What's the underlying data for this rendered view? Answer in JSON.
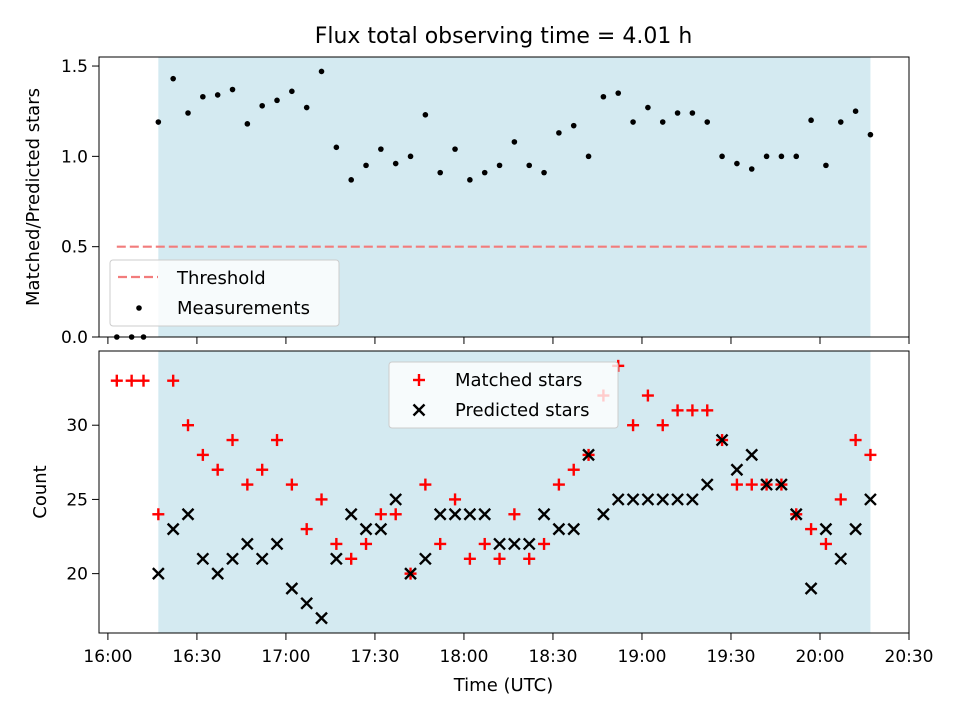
{
  "title": "Flux total observing time = 4.01 h",
  "colors": {
    "shade": "#d4eaf1",
    "threshold": "#f27c7c",
    "matched": "#ff0000",
    "predicted": "#000000",
    "measure": "#000000"
  },
  "chart_data": [
    {
      "type": "scatter",
      "name": "ratio-panel",
      "ylabel": "Matched/Predicted stars",
      "ylim": [
        0,
        1.55
      ],
      "yticks": [
        0,
        0.5,
        1.0,
        1.5
      ],
      "ytick_labels": [
        "0.0",
        "0.5",
        "1.0",
        "1.5"
      ],
      "shaded_range": [
        "16:17",
        "20:17"
      ],
      "threshold": {
        "label": "Threshold",
        "y": 0.5,
        "x_from": "16:03",
        "x_to": "20:17"
      },
      "measurements_label": "Measurements",
      "x": [
        "16:03",
        "16:08",
        "16:12",
        "16:17",
        "16:22",
        "16:27",
        "16:32",
        "16:37",
        "16:42",
        "16:47",
        "16:52",
        "16:57",
        "17:02",
        "17:07",
        "17:12",
        "17:17",
        "17:22",
        "17:27",
        "17:32",
        "17:37",
        "17:42",
        "17:47",
        "17:52",
        "17:57",
        "18:02",
        "18:07",
        "18:12",
        "18:17",
        "18:22",
        "18:27",
        "18:32",
        "18:37",
        "18:42",
        "18:47",
        "18:52",
        "18:57",
        "19:02",
        "19:07",
        "19:12",
        "19:17",
        "19:22",
        "19:27",
        "19:32",
        "19:37",
        "19:42",
        "19:47",
        "19:52",
        "19:57",
        "20:02",
        "20:07",
        "20:12",
        "20:17"
      ],
      "y": [
        0,
        0,
        0,
        1.19,
        1.43,
        1.24,
        1.33,
        1.34,
        1.37,
        1.18,
        1.28,
        1.31,
        1.36,
        1.27,
        1.47,
        1.05,
        0.87,
        0.95,
        1.04,
        0.96,
        1.0,
        1.23,
        0.91,
        1.04,
        0.87,
        0.91,
        0.95,
        1.08,
        0.95,
        0.91,
        1.13,
        1.17,
        1.0,
        1.33,
        1.35,
        1.19,
        1.27,
        1.19,
        1.24,
        1.24,
        1.19,
        1.0,
        0.96,
        0.93,
        1.0,
        1.0,
        1.0,
        1.2,
        0.95,
        1.19,
        1.25,
        1.12
      ]
    },
    {
      "type": "scatter",
      "name": "count-panel",
      "ylabel": "Count",
      "xlabel": "Time (UTC)",
      "ylim": [
        16,
        35
      ],
      "yticks": [
        20,
        25,
        30
      ],
      "xlim": [
        "15:57",
        "20:30"
      ],
      "xticks": [
        "16:00",
        "16:30",
        "17:00",
        "17:30",
        "18:00",
        "18:30",
        "19:00",
        "19:30",
        "20:00",
        "20:30"
      ],
      "shaded_range": [
        "16:17",
        "20:17"
      ],
      "series": [
        {
          "name": "Matched stars",
          "x": [
            "16:03",
            "16:08",
            "16:12",
            "16:17",
            "16:22",
            "16:27",
            "16:32",
            "16:37",
            "16:42",
            "16:47",
            "16:52",
            "16:57",
            "17:02",
            "17:07",
            "17:12",
            "17:17",
            "17:22",
            "17:27",
            "17:32",
            "17:37",
            "17:42",
            "17:47",
            "17:52",
            "17:57",
            "18:02",
            "18:07",
            "18:12",
            "18:17",
            "18:22",
            "18:27",
            "18:32",
            "18:37",
            "18:42",
            "18:47",
            "18:52",
            "18:57",
            "19:02",
            "19:07",
            "19:12",
            "19:17",
            "19:22",
            "19:27",
            "19:32",
            "19:37",
            "19:42",
            "19:47",
            "19:52",
            "19:57",
            "20:02",
            "20:07",
            "20:12",
            "20:17"
          ],
          "values": [
            33,
            33,
            33,
            24,
            33,
            30,
            28,
            27,
            29,
            26,
            27,
            29,
            26,
            23,
            25,
            22,
            21,
            22,
            24,
            24,
            20,
            26,
            22,
            25,
            21,
            22,
            21,
            24,
            21,
            22,
            26,
            27,
            28,
            32,
            34,
            30,
            32,
            30,
            31,
            31,
            31,
            29,
            26,
            26,
            26,
            26,
            24,
            23,
            22,
            25,
            29,
            28
          ]
        },
        {
          "name": "Predicted stars",
          "x": [
            "16:17",
            "16:22",
            "16:27",
            "16:32",
            "16:37",
            "16:42",
            "16:47",
            "16:52",
            "16:57",
            "17:02",
            "17:07",
            "17:12",
            "17:17",
            "17:22",
            "17:27",
            "17:32",
            "17:37",
            "17:42",
            "17:47",
            "17:52",
            "17:57",
            "18:02",
            "18:07",
            "18:12",
            "18:17",
            "18:22",
            "18:27",
            "18:32",
            "18:37",
            "18:42",
            "18:47",
            "18:52",
            "18:57",
            "19:02",
            "19:07",
            "19:12",
            "19:17",
            "19:22",
            "19:27",
            "19:32",
            "19:37",
            "19:42",
            "19:47",
            "19:52",
            "19:57",
            "20:02",
            "20:07",
            "20:12",
            "20:17"
          ],
          "values": [
            20,
            23,
            24,
            21,
            20,
            21,
            22,
            21,
            22,
            19,
            18,
            17,
            21,
            24,
            23,
            23,
            25,
            20,
            21,
            24,
            24,
            24,
            24,
            22,
            22,
            22,
            24,
            23,
            23,
            28,
            24,
            25,
            25,
            25,
            25,
            25,
            25,
            26,
            29,
            27,
            28,
            26,
            26,
            24,
            19,
            23,
            21,
            23,
            25
          ]
        }
      ]
    }
  ]
}
